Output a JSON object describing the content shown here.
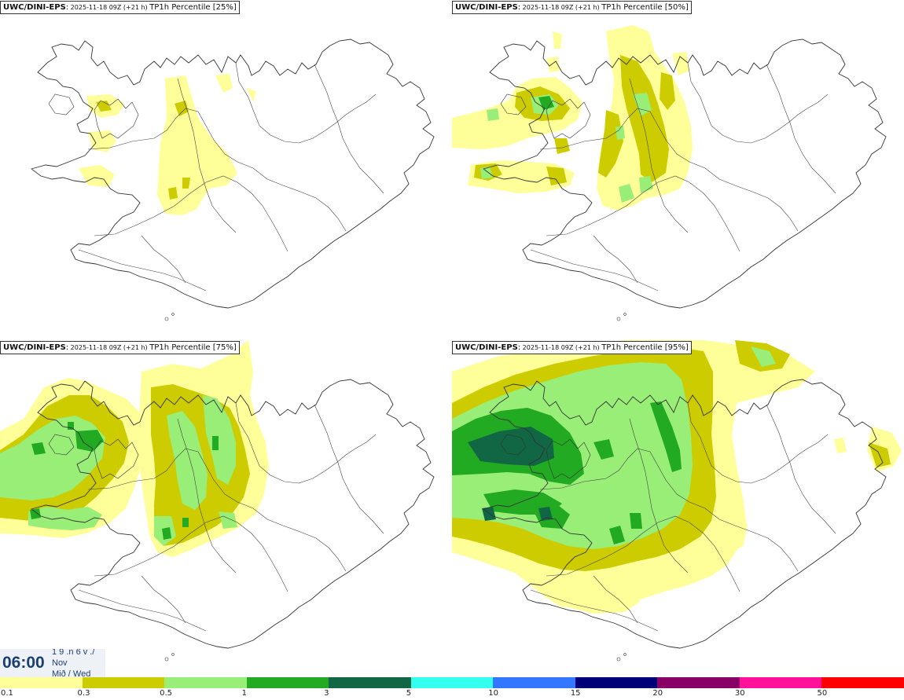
{
  "panels": [
    {
      "model": "UWC/DINI-EPS",
      "run": " 2025-11-18 09Z (+21 h) ",
      "product": "TP1h Percentile [25%]",
      "percentile": 25
    },
    {
      "model": "UWC/DINI-EPS",
      "run": " 2025-11-18 09Z (+21 h) ",
      "product": "TP1h Percentile [50%]",
      "percentile": 50
    },
    {
      "model": "UWC/DINI-EPS",
      "run": " 2025-11-18 09Z (+21 h) ",
      "product": "TP1h Percentile [75%]",
      "percentile": 75
    },
    {
      "model": "UWC/DINI-EPS",
      "run": " 2025-11-18 09Z (+21 h) ",
      "product": "TP1h Percentile [95%]",
      "percentile": 95
    }
  ],
  "valid_time": {
    "clock": "06:00",
    "line1": "1 9 .n 6 v ./",
    "line2": "Nov",
    "line3": "Mið / Wed"
  },
  "legend": {
    "colors": [
      "#ffff99",
      "#cccc00",
      "#99ee77",
      "#22aa22",
      "#116644",
      "#33ffee",
      "#3377ff",
      "#000077",
      "#880066",
      "#ff1199",
      "#ff0000"
    ],
    "labels": [
      "0.1",
      "0.3",
      "0.5",
      "1",
      "3",
      "5",
      "10",
      "15",
      "20",
      "30",
      "50"
    ]
  }
}
